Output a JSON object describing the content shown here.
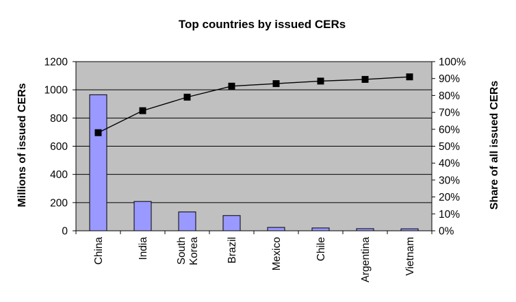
{
  "chart_data": {
    "type": "bar",
    "title": "Top countries by issued CERs",
    "categories": [
      "China",
      "India",
      "South Korea",
      "Brazil",
      "Mexico",
      "Chile",
      "Argentina",
      "Vietnam"
    ],
    "category_lines": [
      [
        "China"
      ],
      [
        "India"
      ],
      [
        "South",
        "Korea"
      ],
      [
        "Brazil"
      ],
      [
        "Mexico"
      ],
      [
        "Chile"
      ],
      [
        "Argentina"
      ],
      [
        "Vietnam"
      ]
    ],
    "series": [
      {
        "type": "bar",
        "axis": "left",
        "values": [
          965,
          208,
          134,
          108,
          24,
          20,
          15,
          14
        ],
        "color": "#9999ff"
      },
      {
        "type": "line",
        "axis": "right",
        "values": [
          0.58,
          0.71,
          0.79,
          0.855,
          0.87,
          0.885,
          0.895,
          0.91
        ],
        "color": "#000000",
        "marker": "square"
      }
    ],
    "ylabel": "Millions of issued CERs",
    "ylabel_right": "Share of all issued CERs",
    "ylim": [
      0,
      1200
    ],
    "y_ticks": [
      "0",
      "200",
      "400",
      "600",
      "800",
      "1000",
      "1200"
    ],
    "ylim_right": [
      0,
      1
    ],
    "y_ticks_right": [
      "0%",
      "10%",
      "20%",
      "30%",
      "40%",
      "50%",
      "60%",
      "70%",
      "80%",
      "90%",
      "100%"
    ],
    "grid": true,
    "plot_background": "#c0c0c0",
    "legend": "none"
  }
}
